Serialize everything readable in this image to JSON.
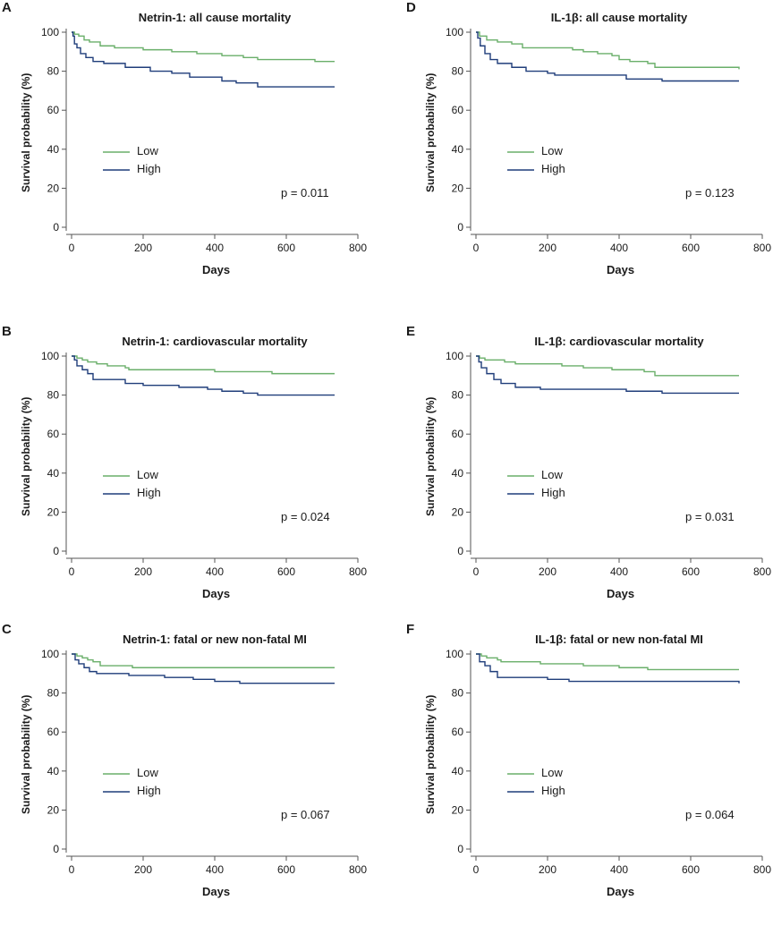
{
  "colors": {
    "low": "#6aaf6a",
    "high": "#1f3d7a",
    "axis": "#555555"
  },
  "chart_data": [
    {
      "panel": "A",
      "type": "line",
      "title": "Netrin-1: all cause mortality",
      "xlabel": "Days",
      "ylabel": "Survival probability (%)",
      "xlim": [
        0,
        800
      ],
      "ylim": [
        0,
        100
      ],
      "xticks": [
        0,
        200,
        400,
        600,
        800
      ],
      "yticks": [
        0,
        20,
        40,
        60,
        80,
        100
      ],
      "legend": [
        "Low",
        "High"
      ],
      "pvalue": "p = 0.011",
      "series": [
        {
          "name": "Low",
          "points": [
            [
              0,
              100
            ],
            [
              8,
              99
            ],
            [
              20,
              98
            ],
            [
              35,
              96
            ],
            [
              50,
              95
            ],
            [
              80,
              93
            ],
            [
              120,
              92
            ],
            [
              200,
              91
            ],
            [
              280,
              90
            ],
            [
              350,
              89
            ],
            [
              420,
              88
            ],
            [
              480,
              87
            ],
            [
              520,
              86
            ],
            [
              650,
              86
            ],
            [
              680,
              85
            ],
            [
              735,
              85
            ]
          ]
        },
        {
          "name": "High",
          "points": [
            [
              0,
              100
            ],
            [
              4,
              98
            ],
            [
              8,
              94
            ],
            [
              15,
              92
            ],
            [
              25,
              89
            ],
            [
              40,
              87
            ],
            [
              60,
              85
            ],
            [
              90,
              84
            ],
            [
              150,
              82
            ],
            [
              220,
              80
            ],
            [
              280,
              79
            ],
            [
              330,
              77
            ],
            [
              420,
              75
            ],
            [
              460,
              74
            ],
            [
              520,
              72
            ],
            [
              735,
              72
            ]
          ]
        }
      ]
    },
    {
      "panel": "B",
      "type": "line",
      "title": "Netrin-1: cardiovascular mortality",
      "xlabel": "Days",
      "ylabel": "Survival probability (%)",
      "xlim": [
        0,
        800
      ],
      "ylim": [
        0,
        100
      ],
      "xticks": [
        0,
        200,
        400,
        600,
        800
      ],
      "yticks": [
        0,
        20,
        40,
        60,
        80,
        100
      ],
      "legend": [
        "Low",
        "High"
      ],
      "pvalue": "p = 0.024",
      "series": [
        {
          "name": "Low",
          "points": [
            [
              0,
              100
            ],
            [
              15,
              99
            ],
            [
              30,
              98
            ],
            [
              45,
              97
            ],
            [
              70,
              96
            ],
            [
              100,
              95
            ],
            [
              150,
              94
            ],
            [
              160,
              93
            ],
            [
              350,
              93
            ],
            [
              400,
              92
            ],
            [
              530,
              92
            ],
            [
              560,
              91
            ],
            [
              735,
              91
            ]
          ]
        },
        {
          "name": "High",
          "points": [
            [
              0,
              100
            ],
            [
              8,
              98
            ],
            [
              15,
              95
            ],
            [
              30,
              93
            ],
            [
              45,
              91
            ],
            [
              60,
              88
            ],
            [
              150,
              86
            ],
            [
              200,
              85
            ],
            [
              280,
              85
            ],
            [
              300,
              84
            ],
            [
              380,
              83
            ],
            [
              420,
              82
            ],
            [
              480,
              81
            ],
            [
              520,
              80
            ],
            [
              735,
              80
            ]
          ]
        }
      ]
    },
    {
      "panel": "C",
      "type": "line",
      "title": "Netrin-1: fatal or new non-fatal MI",
      "xlabel": "Days",
      "ylabel": "Survival probability (%)",
      "xlim": [
        0,
        800
      ],
      "ylim": [
        0,
        100
      ],
      "xticks": [
        0,
        200,
        400,
        600,
        800
      ],
      "yticks": [
        0,
        20,
        40,
        60,
        80,
        100
      ],
      "legend": [
        "Low",
        "High"
      ],
      "pvalue": "p = 0.067",
      "series": [
        {
          "name": "Low",
          "points": [
            [
              0,
              100
            ],
            [
              15,
              99
            ],
            [
              30,
              98
            ],
            [
              45,
              97
            ],
            [
              60,
              96
            ],
            [
              80,
              94
            ],
            [
              160,
              94
            ],
            [
              170,
              93
            ],
            [
              735,
              93
            ]
          ]
        },
        {
          "name": "High",
          "points": [
            [
              0,
              100
            ],
            [
              10,
              97
            ],
            [
              20,
              95
            ],
            [
              35,
              93
            ],
            [
              50,
              91
            ],
            [
              70,
              90
            ],
            [
              160,
              89
            ],
            [
              260,
              88
            ],
            [
              340,
              87
            ],
            [
              400,
              86
            ],
            [
              470,
              85
            ],
            [
              735,
              85
            ]
          ]
        }
      ]
    },
    {
      "panel": "D",
      "type": "line",
      "title": "IL-1β: all cause mortality",
      "xlabel": "Days",
      "ylabel": "Survival probability (%)",
      "xlim": [
        0,
        800
      ],
      "ylim": [
        0,
        100
      ],
      "xticks": [
        0,
        200,
        400,
        600,
        800
      ],
      "yticks": [
        0,
        20,
        40,
        60,
        80,
        100
      ],
      "legend": [
        "Low",
        "High"
      ],
      "pvalue": "p = 0.123",
      "series": [
        {
          "name": "Low",
          "points": [
            [
              0,
              100
            ],
            [
              10,
              98
            ],
            [
              30,
              96
            ],
            [
              60,
              95
            ],
            [
              100,
              94
            ],
            [
              130,
              92
            ],
            [
              240,
              92
            ],
            [
              270,
              91
            ],
            [
              300,
              90
            ],
            [
              340,
              89
            ],
            [
              380,
              88
            ],
            [
              400,
              86
            ],
            [
              430,
              85
            ],
            [
              480,
              84
            ],
            [
              500,
              82
            ],
            [
              735,
              81
            ]
          ]
        },
        {
          "name": "High",
          "points": [
            [
              0,
              100
            ],
            [
              5,
              97
            ],
            [
              12,
              93
            ],
            [
              25,
              89
            ],
            [
              40,
              86
            ],
            [
              60,
              84
            ],
            [
              100,
              82
            ],
            [
              140,
              80
            ],
            [
              200,
              79
            ],
            [
              220,
              78
            ],
            [
              400,
              78
            ],
            [
              420,
              76
            ],
            [
              520,
              75
            ],
            [
              735,
              75
            ]
          ]
        }
      ]
    },
    {
      "panel": "E",
      "type": "line",
      "title": "IL-1β: cardiovascular mortality",
      "xlabel": "Days",
      "ylabel": "Survival probability (%)",
      "xlim": [
        0,
        800
      ],
      "ylim": [
        0,
        100
      ],
      "xticks": [
        0,
        200,
        400,
        600,
        800
      ],
      "yticks": [
        0,
        20,
        40,
        60,
        80,
        100
      ],
      "legend": [
        "Low",
        "High"
      ],
      "pvalue": "p = 0.031",
      "series": [
        {
          "name": "Low",
          "points": [
            [
              0,
              100
            ],
            [
              10,
              99
            ],
            [
              25,
              98
            ],
            [
              80,
              97
            ],
            [
              110,
              96
            ],
            [
              240,
              95
            ],
            [
              300,
              94
            ],
            [
              380,
              93
            ],
            [
              470,
              92
            ],
            [
              500,
              90
            ],
            [
              735,
              90
            ]
          ]
        },
        {
          "name": "High",
          "points": [
            [
              0,
              100
            ],
            [
              8,
              97
            ],
            [
              15,
              94
            ],
            [
              30,
              91
            ],
            [
              50,
              88
            ],
            [
              70,
              86
            ],
            [
              110,
              84
            ],
            [
              180,
              83
            ],
            [
              420,
              82
            ],
            [
              520,
              81
            ],
            [
              735,
              81
            ]
          ]
        }
      ]
    },
    {
      "panel": "F",
      "type": "line",
      "title": "IL-1β: fatal or new non-fatal MI",
      "xlabel": "Days",
      "ylabel": "Survival probability (%)",
      "xlim": [
        0,
        800
      ],
      "ylim": [
        0,
        100
      ],
      "xticks": [
        0,
        200,
        400,
        600,
        800
      ],
      "yticks": [
        0,
        20,
        40,
        60,
        80,
        100
      ],
      "legend": [
        "Low",
        "High"
      ],
      "pvalue": "p = 0.064",
      "series": [
        {
          "name": "Low",
          "points": [
            [
              0,
              100
            ],
            [
              15,
              99
            ],
            [
              30,
              98
            ],
            [
              60,
              97
            ],
            [
              70,
              96
            ],
            [
              180,
              95
            ],
            [
              260,
              95
            ],
            [
              300,
              94
            ],
            [
              380,
              94
            ],
            [
              400,
              93
            ],
            [
              480,
              92
            ],
            [
              735,
              92
            ]
          ]
        },
        {
          "name": "High",
          "points": [
            [
              0,
              100
            ],
            [
              10,
              96
            ],
            [
              25,
              94
            ],
            [
              40,
              91
            ],
            [
              60,
              88
            ],
            [
              200,
              87
            ],
            [
              260,
              86
            ],
            [
              735,
              85
            ]
          ]
        }
      ]
    }
  ]
}
